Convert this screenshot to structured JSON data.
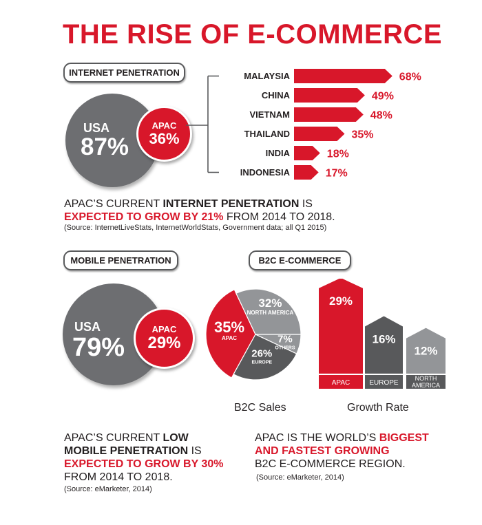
{
  "title": "THE RISE OF E-COMMERCE",
  "internet": {
    "pill": "INTERNET PENETRATION",
    "usa_label": "USA",
    "usa_value": "87%",
    "apac_label": "APAC",
    "apac_value": "36%",
    "para_line1_pre": "APAC’S CURRENT ",
    "para_line1_bold": "INTERNET PENETRATION",
    "para_line1_post": " IS",
    "para_line2_red": "EXPECTED TO GROW BY 21%",
    "para_line2_post": " FROM 2014 TO 2018.",
    "source": "(Source: InternetLiveStats, InternetWorldStats, Government data; all Q1 2015)"
  },
  "mobile": {
    "pill": "MOBILE PENETRATION",
    "usa_label": "USA",
    "usa_value": "79%",
    "apac_label": "APAC",
    "apac_value": "29%",
    "line1_pre": "APAC’S CURRENT ",
    "line1_bold": "LOW",
    "line2_bold": "MOBILE PENETRATION",
    "line2_post": " IS",
    "line3_red": "EXPECTED TO GROW BY 30%",
    "line4": "FROM 2014 TO 2018.",
    "source": "(Source: eMarketer, 2014)"
  },
  "b2c": {
    "pill": "B2C E-COMMERCE",
    "sales_caption": "B2C Sales",
    "growth_caption": "Growth Rate",
    "line1_pre": "APAC IS THE WORLD’S ",
    "line1_red": "BIGGEST",
    "line2_red": "AND FASTEST GROWING",
    "line3": "B2C E-COMMERCE REGION.",
    "source": "(Source: eMarketer, 2014)"
  },
  "colors": {
    "red": "#d8172a",
    "gray": "#6d6e71",
    "gray_light": "#939598",
    "gray_dark": "#58595b"
  },
  "chart_data": [
    {
      "type": "bar",
      "orientation": "horizontal",
      "categories": [
        "MALAYSIA",
        "CHINA",
        "VIETNAM",
        "THAILAND",
        "INDIA",
        "INDONESIA"
      ],
      "values": [
        68,
        49,
        48,
        35,
        18,
        17
      ],
      "labels": [
        "68%",
        "49%",
        "48%",
        "35%",
        "18%",
        "17%"
      ]
    },
    {
      "type": "pie",
      "categories": [
        "APAC",
        "NORTH AMERICA",
        "OTHERS",
        "EUROPE"
      ],
      "values": [
        35,
        32,
        7,
        26
      ],
      "labels": [
        "35%",
        "32%",
        "7%",
        "26%"
      ]
    },
    {
      "type": "bar",
      "categories": [
        "APAC",
        "EUROPE",
        "NORTH AMERICA"
      ],
      "values": [
        29,
        16,
        12
      ],
      "labels": [
        "29%",
        "16%",
        "12%"
      ]
    }
  ]
}
